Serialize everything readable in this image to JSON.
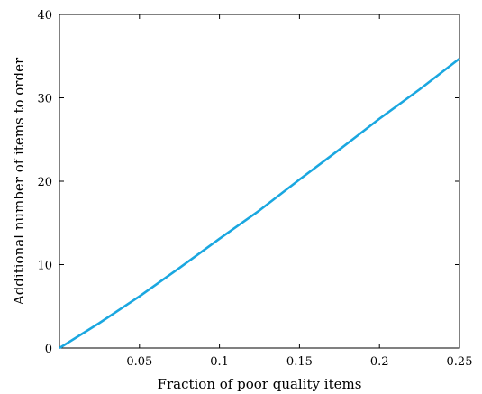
{
  "chart_data": {
    "type": "line",
    "title": "",
    "xlabel": "Fraction of poor quality items",
    "ylabel": "Additional number of items to order",
    "xlim": [
      0,
      0.25
    ],
    "ylim": [
      0,
      40
    ],
    "grid": false,
    "x_ticks": [
      0.05,
      0.1,
      0.15,
      0.2,
      0.25
    ],
    "x_tick_labels": [
      "0.05",
      "0.1",
      "0.15",
      "0.2",
      "0.25"
    ],
    "y_ticks": [
      0,
      10,
      20,
      30,
      40
    ],
    "y_tick_labels": [
      "0",
      "10",
      "20",
      "30",
      "40"
    ],
    "series": [
      {
        "color": "#1aa7e0",
        "x": [
          0,
          0.025,
          0.05,
          0.075,
          0.1,
          0.125,
          0.15,
          0.175,
          0.2,
          0.225,
          0.25
        ],
        "y": [
          0,
          3.0,
          6.2,
          9.6,
          13.1,
          16.5,
          20.2,
          23.8,
          27.5,
          31.0,
          34.7
        ]
      }
    ]
  }
}
